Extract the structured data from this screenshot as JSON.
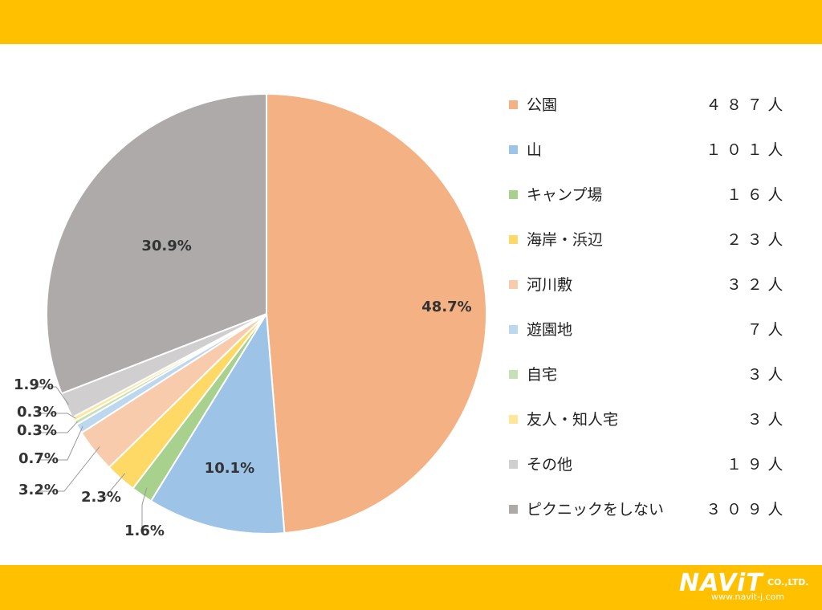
{
  "colors": {
    "band": "#FFC000"
  },
  "chart_data": {
    "type": "pie",
    "categories": [
      "公園",
      "山",
      "キャンプ場",
      "海岸・浜辺",
      "河川敷",
      "遊園地",
      "自宅",
      "友人・知人宅",
      "その他",
      "ピクニックをしない"
    ],
    "values": [
      487,
      101,
      16,
      23,
      32,
      7,
      3,
      3,
      19,
      309
    ],
    "percent_labels": [
      "48.7%",
      "10.1%",
      "1.6%",
      "2.3%",
      "3.2%",
      "0.7%",
      "0.3%",
      "0.3%",
      "1.9%",
      "30.9%"
    ],
    "colors": [
      "#F4B183",
      "#9DC3E6",
      "#A9D18E",
      "#FFD966",
      "#F8CBAD",
      "#BDD7EE",
      "#C5E0B4",
      "#FFE699",
      "#D0CECE",
      "#AEAAAA"
    ],
    "legend_position": "right"
  },
  "legend": [
    {
      "label": "公園",
      "count": "４８７人"
    },
    {
      "label": "山",
      "count": "１０１人"
    },
    {
      "label": "キャンプ場",
      "count": "１６人"
    },
    {
      "label": "海岸・浜辺",
      "count": "２３人"
    },
    {
      "label": "河川敷",
      "count": "３２人"
    },
    {
      "label": "遊園地",
      "count": "７人"
    },
    {
      "label": "自宅",
      "count": "３人"
    },
    {
      "label": "友人・知人宅",
      "count": "３人"
    },
    {
      "label": "その他",
      "count": "１９人"
    },
    {
      "label": "ピクニックをしない",
      "count": "３０９人"
    }
  ],
  "logo": {
    "name": "NAViT",
    "suffix": "CO.,LTD.",
    "url": "www.navit-j.com"
  }
}
